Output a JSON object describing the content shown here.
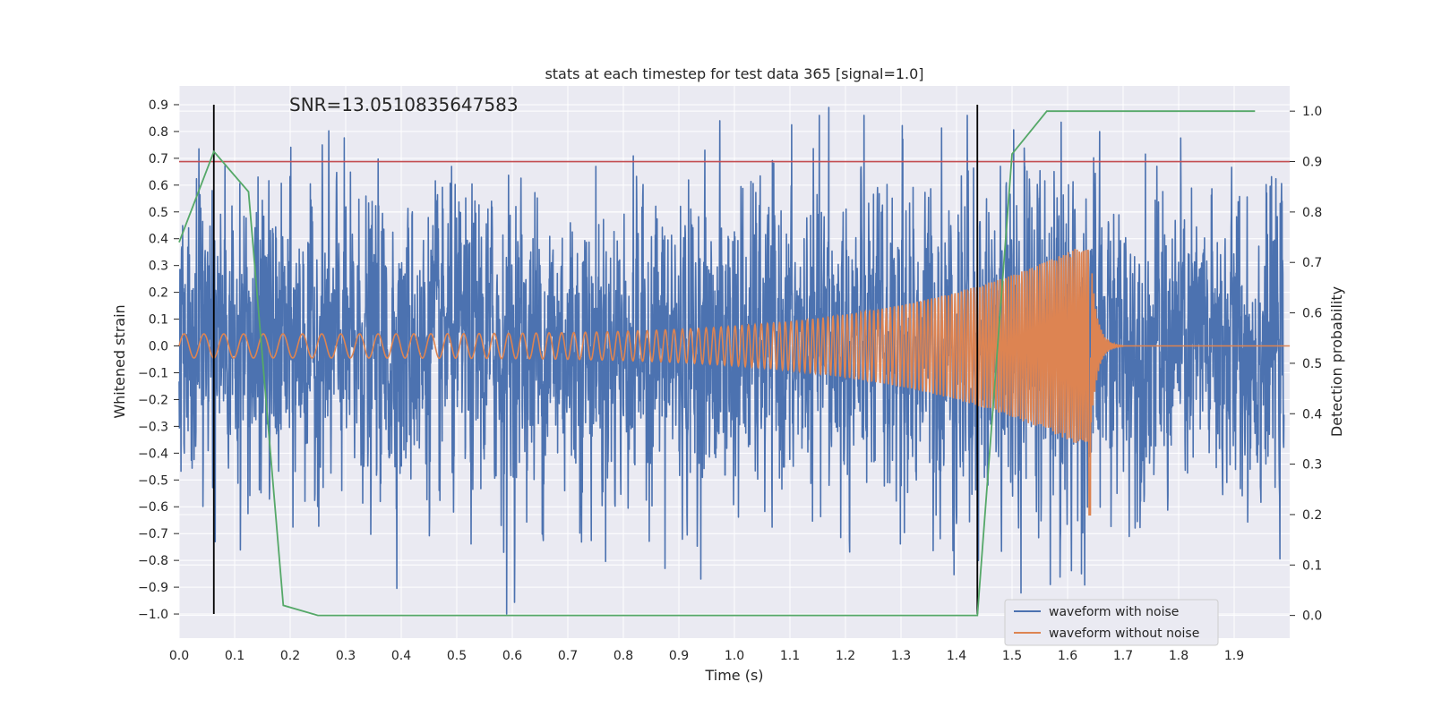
{
  "chart_data": {
    "type": "line",
    "title": "stats at each timestep for test data 365 [signal=1.0]",
    "xlabel": "Time (s)",
    "ylabel": "Whitened strain",
    "y2label": "Detection probability",
    "annotation": "SNR=13.0510835647583",
    "xlim": [
      0.0,
      2.0
    ],
    "ylim": [
      -1.09,
      0.97
    ],
    "y2lim": [
      -0.045,
      1.05
    ],
    "x_ticks": [
      0.0,
      0.1,
      0.2,
      0.3,
      0.4,
      0.5,
      0.6,
      0.7,
      0.8,
      0.9,
      1.0,
      1.1,
      1.2,
      1.3,
      1.4,
      1.5,
      1.6,
      1.7,
      1.8,
      1.9
    ],
    "x_tick_labels": [
      "0.0",
      "0.1",
      "0.2",
      "0.3",
      "0.4",
      "0.5",
      "0.6",
      "0.7",
      "0.8",
      "0.9",
      "1.0",
      "1.1",
      "1.2",
      "1.3",
      "1.4",
      "1.5",
      "1.6",
      "1.7",
      "1.8",
      "1.9"
    ],
    "y_ticks": [
      0.9,
      0.8,
      0.7,
      0.6,
      0.5,
      0.4,
      0.3,
      0.2,
      0.1,
      0.0,
      -0.1,
      -0.2,
      -0.3,
      -0.4,
      -0.5,
      -0.6,
      -0.7,
      -0.8,
      -0.9,
      -1.0
    ],
    "y_tick_labels": [
      "0.9",
      "0.8",
      "0.7",
      "0.6",
      "0.5",
      "0.4",
      "0.3",
      "0.2",
      "0.1",
      "0.0",
      "−0.1",
      "−0.2",
      "−0.3",
      "−0.4",
      "−0.5",
      "−0.6",
      "−0.7",
      "−0.8",
      "−0.9",
      "−1.0"
    ],
    "y2_ticks": [
      1.0,
      0.9,
      0.8,
      0.7,
      0.6,
      0.5,
      0.4,
      0.3,
      0.2,
      0.1,
      0.0
    ],
    "y2_tick_labels": [
      "1.0",
      "0.9",
      "0.8",
      "0.7",
      "0.6",
      "0.5",
      "0.4",
      "0.3",
      "0.2",
      "0.1",
      "0.0"
    ],
    "grid": true,
    "legend_position": "bottom-right",
    "threshold_y2": 0.9,
    "vertical_markers_x": [
      0.0625,
      1.4375
    ],
    "series": [
      {
        "name": "waveform with noise",
        "color": "#4c72b0",
        "kind": "noise",
        "sample_rate": 2048,
        "amplitude_std": 0.27,
        "extremes": [
          [
            0.59,
            -1.0
          ],
          [
            1.17,
            0.89
          ],
          [
            0.875,
            -0.83
          ],
          [
            1.625,
            -0.85
          ],
          [
            0.065,
            -0.73
          ]
        ]
      },
      {
        "name": "waveform without noise",
        "color": "#dd8452",
        "kind": "chirp",
        "f_start": 28,
        "f_end": 260,
        "t_merge": 1.64,
        "amp_start": 0.045,
        "amp_merge_pos": 0.39,
        "amp_merge_neg": -0.63
      },
      {
        "name": "detection probability",
        "color": "#55a868",
        "axis": "right",
        "x": [
          0.0,
          0.0625,
          0.125,
          0.1875,
          0.25,
          0.3125,
          1.375,
          1.4375,
          1.5,
          1.5625,
          1.625,
          1.6875,
          1.75,
          1.8125,
          1.875,
          1.9375
        ],
        "values": [
          0.74,
          0.92,
          0.84,
          0.02,
          0.0,
          0.0,
          0.0,
          0.0,
          0.915,
          1.0,
          1.0,
          1.0,
          1.0,
          1.0,
          1.0,
          1.0
        ]
      }
    ],
    "colors": {
      "background": "#eaeaf2",
      "grid": "#ffffff",
      "threshold": "#c44e52",
      "marker": "#000000"
    }
  }
}
